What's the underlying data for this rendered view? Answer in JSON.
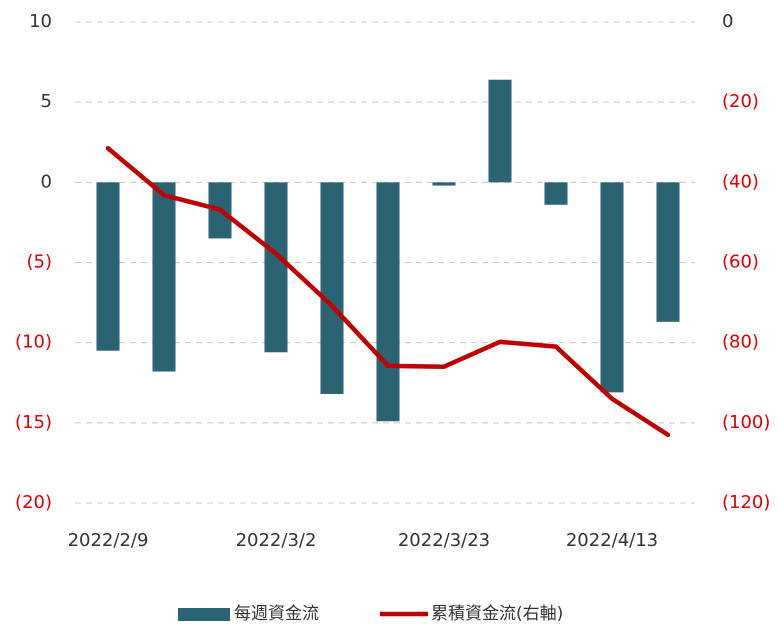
{
  "chart_data": {
    "type": "bar+line",
    "categories": [
      "2022/2/9",
      null,
      null,
      "2022/3/2",
      null,
      null,
      "2022/3/23",
      null,
      null,
      "2022/4/13",
      null
    ],
    "series": [
      {
        "name": "每週資金流",
        "type": "bar",
        "color": "#2a6474",
        "values": [
          -10.5,
          -11.8,
          -3.5,
          -10.6,
          -13.2,
          -14.9,
          -0.2,
          6.4,
          -1.4,
          -13.1,
          -8.7
        ]
      },
      {
        "name": "累積資金流(右軸)",
        "type": "line",
        "axis": "y2",
        "color": "#c00000",
        "values": [
          -31.5,
          -43.2,
          -46.8,
          -57.8,
          -70.8,
          -85.8,
          -86,
          -79.8,
          -81,
          -94,
          -103
        ]
      }
    ],
    "ylim": [
      -20,
      10
    ],
    "yticks": [
      10,
      5,
      0,
      {
        "value": -5,
        "label": "(5)"
      },
      {
        "value": -10,
        "label": "(10)"
      },
      {
        "value": -15,
        "label": "(15)"
      },
      {
        "value": -20,
        "label": "(20)"
      }
    ],
    "y2lim": [
      -120,
      0
    ],
    "y2ticks": [
      0,
      {
        "value": -20,
        "label": "(20)"
      },
      {
        "value": -40,
        "label": "(40)"
      },
      {
        "value": -60,
        "label": "(60)"
      },
      {
        "value": -80,
        "label": "(80)"
      },
      {
        "value": -100,
        "label": "(100)"
      },
      {
        "value": -120,
        "label": "(120)"
      }
    ],
    "grid": true,
    "negative_color": "#e00000",
    "legend": "bottom"
  }
}
